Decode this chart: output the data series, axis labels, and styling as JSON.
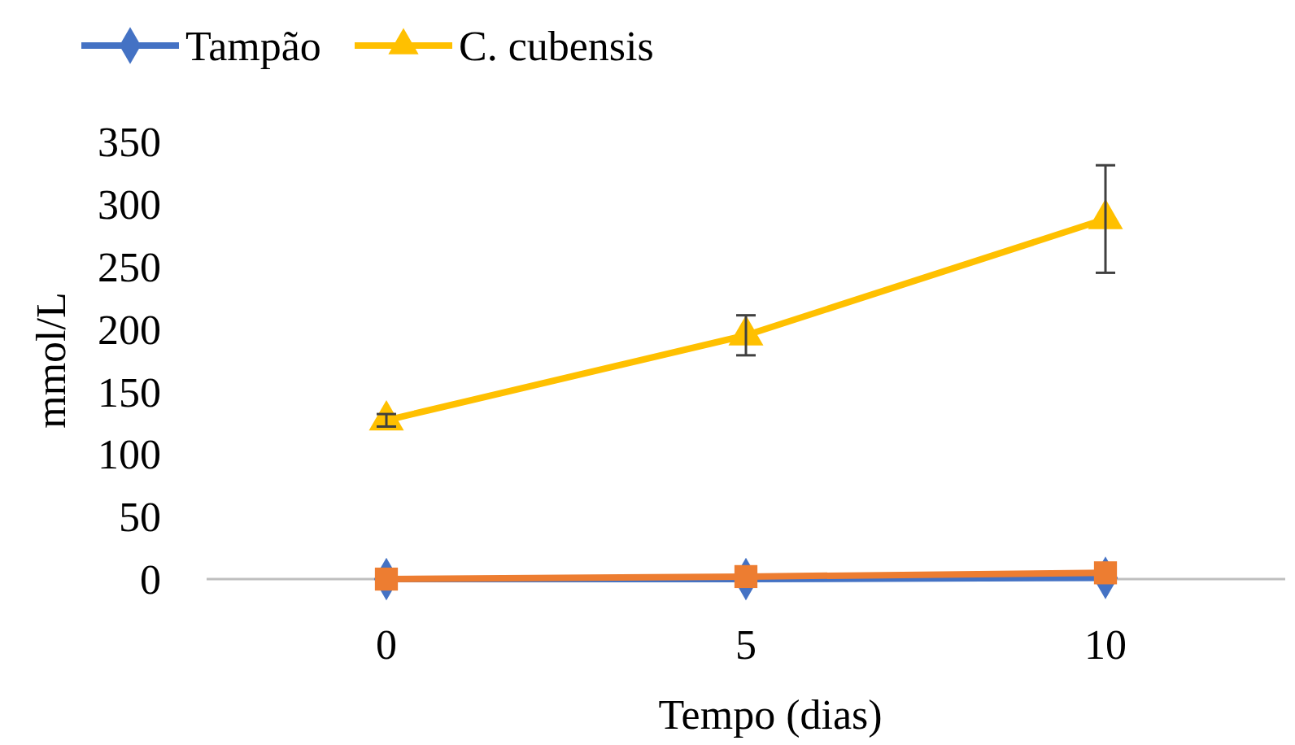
{
  "chart_data": {
    "type": "line",
    "xlabel": "Tempo (dias)",
    "ylabel": "mmol/L",
    "categories": [
      "0",
      "5",
      "10"
    ],
    "ylim": [
      0,
      350
    ],
    "yticks": [
      0,
      50,
      100,
      150,
      200,
      250,
      300,
      350
    ],
    "grid": false,
    "legend": "top",
    "series": [
      {
        "name": "Tampão",
        "color": "#4472c4",
        "marker": "diamond",
        "values": [
          0,
          0,
          1
        ]
      },
      {
        "color": "#ed7d31",
        "marker": "square",
        "values": [
          0,
          2,
          5
        ]
      },
      {
        "name": "C. cubensis",
        "color": "#ffc000",
        "marker": "triangle",
        "values": [
          127,
          195,
          288
        ],
        "errors": [
          5,
          16,
          43
        ]
      }
    ]
  }
}
